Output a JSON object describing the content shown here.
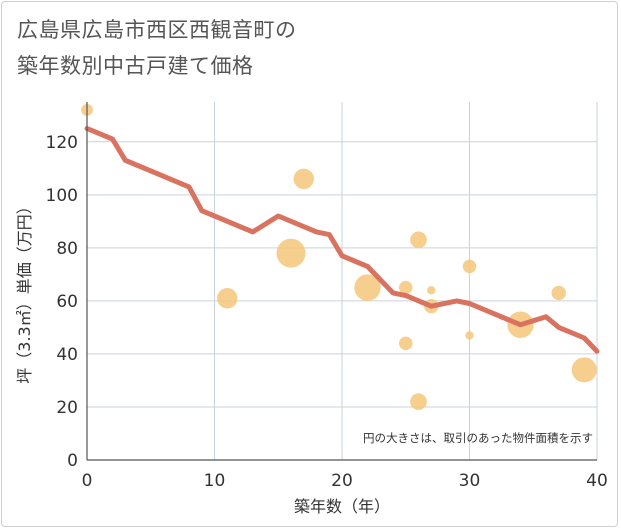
{
  "title_lines": [
    "広島県広島市西区西観音町の",
    "築年数別中古戸建て価格"
  ],
  "chart_data": {
    "type": "scatter",
    "title": "広島県広島市西区西観音町の築年数別中古戸建て価格",
    "xlabel": "築年数（年）",
    "ylabel": "坪（3.3㎡）単価（万円）",
    "xlim": [
      0,
      40
    ],
    "ylim": [
      0,
      135
    ],
    "xticks": [
      0,
      10,
      20,
      30,
      40
    ],
    "yticks": [
      0,
      20,
      40,
      60,
      80,
      100,
      120
    ],
    "grid": true,
    "annotation": "円の大きさは、取引のあった物件面積を示す",
    "colors": {
      "bubble": "#f5c77a",
      "trend": "#d9725f"
    },
    "points": [
      {
        "x": 0,
        "y": 132,
        "size": 1
      },
      {
        "x": 11,
        "y": 61,
        "size": 3
      },
      {
        "x": 16,
        "y": 78,
        "size": 6
      },
      {
        "x": 17,
        "y": 106,
        "size": 3
      },
      {
        "x": 22,
        "y": 65,
        "size": 5
      },
      {
        "x": 25,
        "y": 65,
        "size": 1.3
      },
      {
        "x": 25,
        "y": 44,
        "size": 1.3
      },
      {
        "x": 26,
        "y": 83,
        "size": 2
      },
      {
        "x": 26,
        "y": 22,
        "size": 2
      },
      {
        "x": 27,
        "y": 64,
        "size": 0.5
      },
      {
        "x": 27,
        "y": 58,
        "size": 1.5
      },
      {
        "x": 30,
        "y": 73,
        "size": 1.3
      },
      {
        "x": 30,
        "y": 47,
        "size": 0.5
      },
      {
        "x": 34,
        "y": 51,
        "size": 5
      },
      {
        "x": 37,
        "y": 63,
        "size": 1.5
      },
      {
        "x": 39,
        "y": 34,
        "size": 4.5
      }
    ],
    "trend": {
      "x": [
        0,
        2,
        3,
        5,
        8,
        9,
        13,
        15,
        18,
        19,
        20,
        22,
        24,
        25,
        27,
        29,
        30,
        34,
        36,
        37,
        39,
        40
      ],
      "y": [
        125,
        121,
        113,
        109,
        103,
        94,
        86,
        92,
        86,
        85,
        77,
        73,
        63,
        62,
        58,
        60,
        59,
        51,
        54,
        50,
        46,
        41
      ]
    }
  }
}
